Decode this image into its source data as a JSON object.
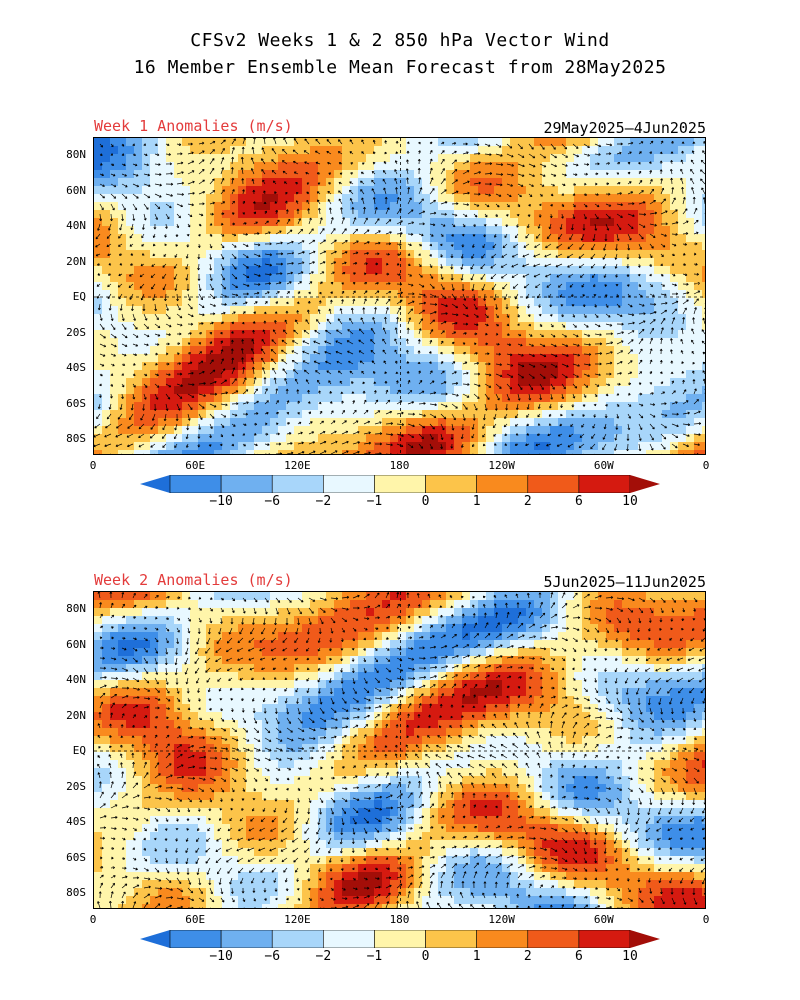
{
  "title": {
    "line1": "CFSv2 Weeks 1 & 2 850 hPa Vector Wind",
    "line2": "16 Member Ensemble Mean Forecast from 28May2025"
  },
  "panels": [
    {
      "label": "Week 1 Anomalies (m/s)",
      "dates": "29May2025—4Jun2025",
      "seed": 3
    },
    {
      "label": "Week 2 Anomalies (m/s)",
      "dates": "5Jun2025—11Jun2025",
      "seed": 11
    }
  ],
  "lat_labels": [
    "80N",
    "60N",
    "40N",
    "20N",
    "EQ",
    "20S",
    "40S",
    "60S",
    "80S"
  ],
  "lon_labels": [
    "0",
    "60E",
    "120E",
    "180",
    "120W",
    "60W",
    "0"
  ],
  "colorbar": {
    "labels": [
      "−10",
      "−6",
      "−2",
      "−1",
      "0",
      "1",
      "2",
      "6",
      "10"
    ],
    "colors": [
      "#1e6fd9",
      "#3e8ee8",
      "#6fb0f0",
      "#a8d6fa",
      "#e8f8ff",
      "#fff5aa",
      "#fcc44a",
      "#f98a1e",
      "#f05a1a",
      "#d51a10",
      "#a30e08"
    ]
  }
}
